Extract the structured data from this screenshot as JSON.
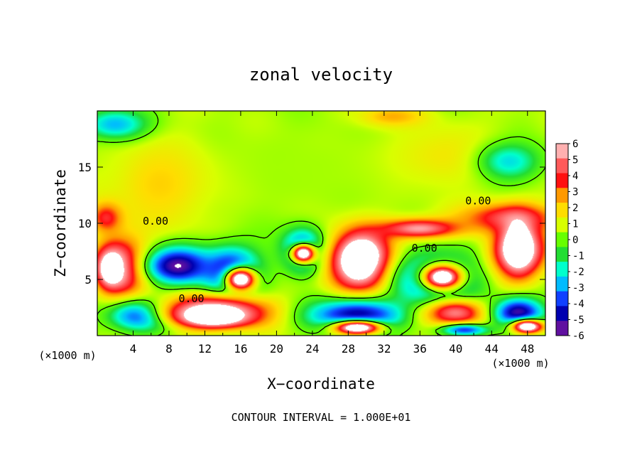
{
  "chart_data": {
    "type": "heatmap",
    "title": "zonal velocity",
    "xlabel": "X−coordinate",
    "ylabel": "Z−coordinate",
    "x_unit_left": "(×1000 m)",
    "x_unit_right": "(×1000 m)",
    "footer": "CONTOUR INTERVAL = 1.000E+01",
    "xlim": [
      0,
      50
    ],
    "ylim": [
      0,
      20
    ],
    "x_ticks": [
      4,
      8,
      12,
      16,
      20,
      24,
      28,
      32,
      36,
      40,
      44,
      48
    ],
    "y_ticks": [
      5,
      10,
      15
    ],
    "colorbar": {
      "min": -6,
      "max": 6,
      "labels": [
        6,
        5,
        4,
        3,
        2,
        1,
        0,
        -1,
        -2,
        -3,
        -4,
        -5,
        -6
      ],
      "colors": [
        "#ffb0b0",
        "#ff5a5a",
        "#ff1010",
        "#ff9900",
        "#ffdd00",
        "#d8ff00",
        "#66ff00",
        "#22dd33",
        "#00ffcc",
        "#00bbff",
        "#1040ff",
        "#0000b0",
        "#6010a0"
      ]
    },
    "contour_labels": [
      {
        "text": "0.00",
        "x": 6.5,
        "y": 10.2
      },
      {
        "text": "0.00",
        "x": 42.5,
        "y": 12.0
      },
      {
        "text": "0.00",
        "x": 36.5,
        "y": 7.8
      },
      {
        "text": "0.00",
        "x": 10.5,
        "y": 3.3
      }
    ],
    "features": [
      {
        "v": 0.4,
        "x": 25,
        "y": 15,
        "rx": 28,
        "ry": 6
      },
      {
        "v": 1.6,
        "x": 7,
        "y": 13.5,
        "rx": 6,
        "ry": 4.5
      },
      {
        "v": 1.3,
        "x": 40,
        "y": 16,
        "rx": 8,
        "ry": 3
      },
      {
        "v": -2.2,
        "x": 2,
        "y": 18.8,
        "rx": 4,
        "ry": 1.5
      },
      {
        "v": -1.8,
        "x": 46,
        "y": 15.5,
        "rx": 4,
        "ry": 2
      },
      {
        "v": 2.0,
        "x": 33,
        "y": 19.5,
        "rx": 4,
        "ry": 1
      },
      {
        "v": 3.2,
        "x": 1,
        "y": 10.5,
        "rx": 2,
        "ry": 1.5
      },
      {
        "v": 3.5,
        "x": 46,
        "y": 10.5,
        "rx": 6,
        "ry": 1.5
      },
      {
        "v": 4.5,
        "x": 36,
        "y": 9.5,
        "rx": 5,
        "ry": 1
      },
      {
        "v": 4.3,
        "x": 3,
        "y": 6,
        "rx": 3,
        "ry": 3
      },
      {
        "v": 6,
        "x": 1.5,
        "y": 6,
        "rx": 1.8,
        "ry": 2
      },
      {
        "v": -4.5,
        "x": 9,
        "y": 6.2,
        "rx": 4,
        "ry": 1.8
      },
      {
        "v": -4.5,
        "x": 15,
        "y": 5.5,
        "rx": 3.5,
        "ry": 2.5
      },
      {
        "v": 6,
        "x": 16,
        "y": 5,
        "rx": 2,
        "ry": 1.2
      },
      {
        "v": -4.5,
        "x": 23,
        "y": 7.5,
        "rx": 2.5,
        "ry": 2
      },
      {
        "v": 6,
        "x": 23,
        "y": 7.3,
        "rx": 1.6,
        "ry": 1
      },
      {
        "v": 5.0,
        "x": 29.5,
        "y": 6.5,
        "rx": 4,
        "ry": 3
      },
      {
        "v": 6,
        "x": 29.5,
        "y": 6.8,
        "rx": 2.7,
        "ry": 2.2
      },
      {
        "v": -4.3,
        "x": 38,
        "y": 5,
        "rx": 5,
        "ry": 2.5
      },
      {
        "v": 6,
        "x": 38.5,
        "y": 5.2,
        "rx": 2.8,
        "ry": 1.4
      },
      {
        "v": 4.5,
        "x": 47,
        "y": 7.5,
        "rx": 3.5,
        "ry": 2.5
      },
      {
        "v": 6,
        "x": 47,
        "y": 8,
        "rx": 2,
        "ry": 2.5
      },
      {
        "v": -4.0,
        "x": 5,
        "y": 1.8,
        "rx": 4,
        "ry": 1.5
      },
      {
        "v": 5.0,
        "x": 13,
        "y": 2.2,
        "rx": 7,
        "ry": 1.6
      },
      {
        "v": 6,
        "x": 13,
        "y": 1.6,
        "rx": 4,
        "ry": 0.9
      },
      {
        "v": -4.0,
        "x": 29,
        "y": 1.8,
        "rx": 6,
        "ry": 1.6
      },
      {
        "v": 6,
        "x": 29,
        "y": 0.7,
        "rx": 3,
        "ry": 0.7
      },
      {
        "v": 4.0,
        "x": 40,
        "y": 2,
        "rx": 4,
        "ry": 1.4
      },
      {
        "v": -4.3,
        "x": 47,
        "y": 2,
        "rx": 3,
        "ry": 1.5
      },
      {
        "v": 6,
        "x": 48,
        "y": 0.8,
        "rx": 2,
        "ry": 0.7
      },
      {
        "v": -3.0,
        "x": 41,
        "y": 0.5,
        "rx": 3,
        "ry": 0.6
      }
    ]
  }
}
